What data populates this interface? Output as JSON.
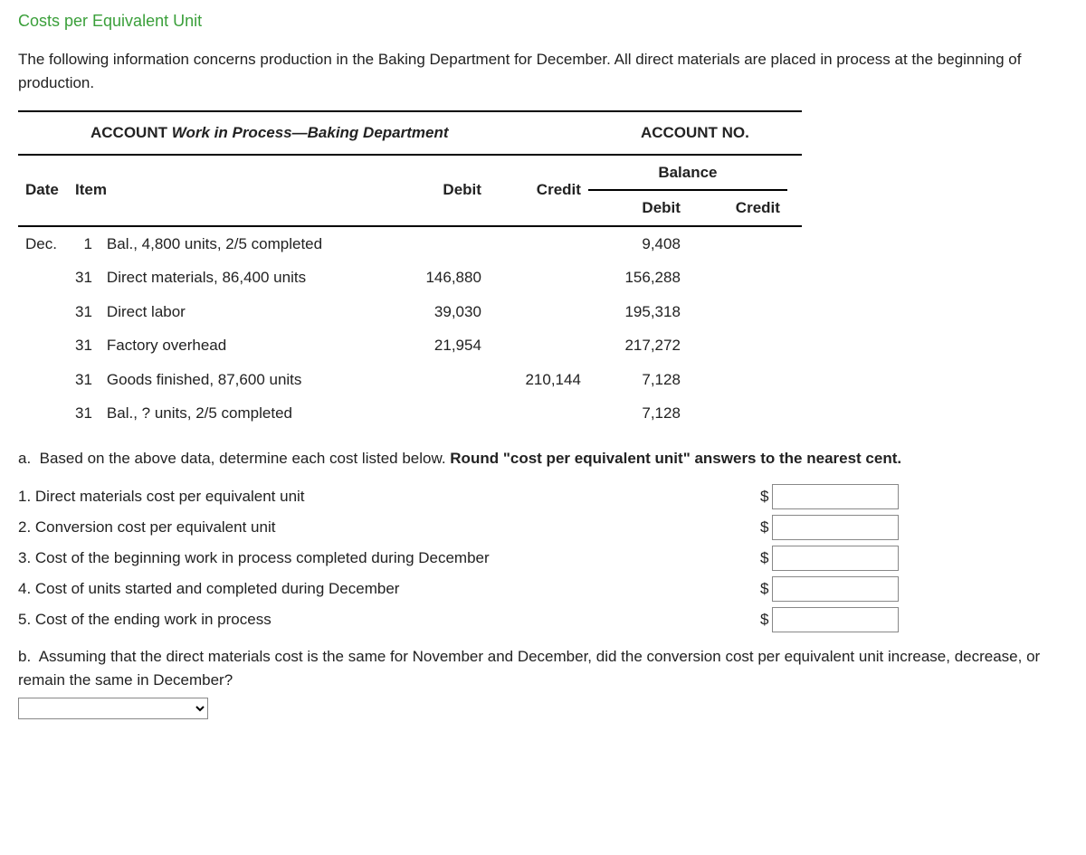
{
  "title": "Costs per Equivalent Unit",
  "intro": "The following information concerns production in the Baking Department for December. All direct materials are placed in process at the beginning of production.",
  "ledger": {
    "account_label": "ACCOUNT",
    "account_name_prefix": "Work in Process",
    "account_name_suffix": "Baking Department",
    "account_no_label": "ACCOUNT NO.",
    "cols": {
      "date": "Date",
      "item": "Item",
      "debit": "Debit",
      "credit": "Credit",
      "balance": "Balance",
      "bal_debit": "Debit",
      "bal_credit": "Credit"
    },
    "rows": [
      {
        "month": "Dec.",
        "day": "1",
        "item": "Bal., 4,800 units, 2/5 completed",
        "debit": "",
        "credit": "",
        "bdebit": "9,408",
        "bcredit": ""
      },
      {
        "month": "",
        "day": "31",
        "item": "Direct materials, 86,400 units",
        "debit": "146,880",
        "credit": "",
        "bdebit": "156,288",
        "bcredit": ""
      },
      {
        "month": "",
        "day": "31",
        "item": "Direct labor",
        "debit": "39,030",
        "credit": "",
        "bdebit": "195,318",
        "bcredit": ""
      },
      {
        "month": "",
        "day": "31",
        "item": "Factory overhead",
        "debit": "21,954",
        "credit": "",
        "bdebit": "217,272",
        "bcredit": ""
      },
      {
        "month": "",
        "day": "31",
        "item": "Goods finished, 87,600 units",
        "debit": "",
        "credit": "210,144",
        "bdebit": "7,128",
        "bcredit": ""
      },
      {
        "month": "",
        "day": "31",
        "item": "Bal., ? units, 2/5 completed",
        "debit": "",
        "credit": "",
        "bdebit": "7,128",
        "bcredit": ""
      }
    ]
  },
  "part_a": {
    "prefix": "a.",
    "text1": "Based on the above data, determine each cost listed below. ",
    "bold": "Round \"cost per equivalent unit\" answers to the nearest cent."
  },
  "questions": [
    "1.  Direct materials cost per equivalent unit",
    "2.  Conversion cost per equivalent unit",
    "3.  Cost of the beginning work in process completed during December",
    "4.  Cost of units started and completed during December",
    "5.  Cost of the ending work in process"
  ],
  "dollar": "$",
  "part_b": {
    "prefix": "b.",
    "text": "Assuming that the direct materials cost is the same for November and December, did the conversion cost per equivalent unit increase, decrease, or remain the same in December?"
  }
}
